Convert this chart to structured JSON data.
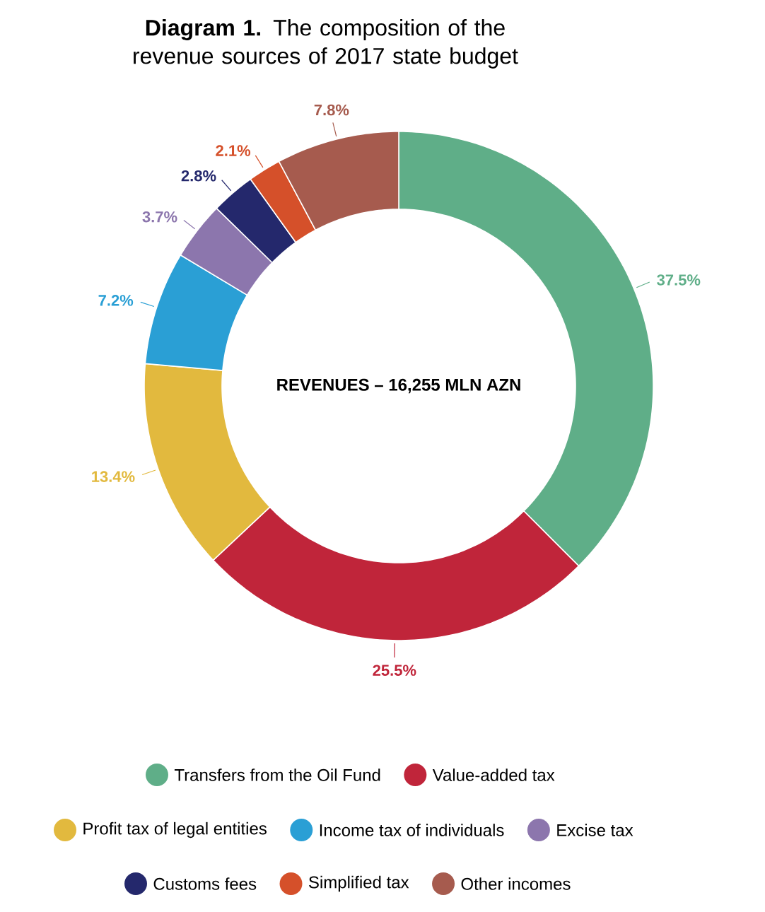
{
  "chart_data": {
    "type": "donut",
    "title": "**Diagram 1.** The composition of the revenue sources of 2017 state budget",
    "categories": [
      "Transfers from the Oil Fund",
      "Value-added tax",
      "Profit tax of legal entities",
      "Income tax of individuals",
      "Excise tax",
      "Customs fees",
      "Simplified tax",
      "Other incomes"
    ],
    "values": [
      37.5,
      25.5,
      13.4,
      7.2,
      3.7,
      2.8,
      2.1,
      7.8
    ],
    "value_labels": [
      "37.5%",
      "25.5%",
      "13.4%",
      "7.2%",
      "3.7%",
      "2.8%",
      "2.1%",
      "7.8%"
    ],
    "colors": [
      "#5fae88",
      "#c0253a",
      "#e2b93e",
      "#2a9fd5",
      "#8c76ad",
      "#24286c",
      "#d5502a",
      "#a65b4e"
    ],
    "annotations": [
      "REVENUES – 16,255 MLN AZN"
    ],
    "legend": "bottom"
  }
}
